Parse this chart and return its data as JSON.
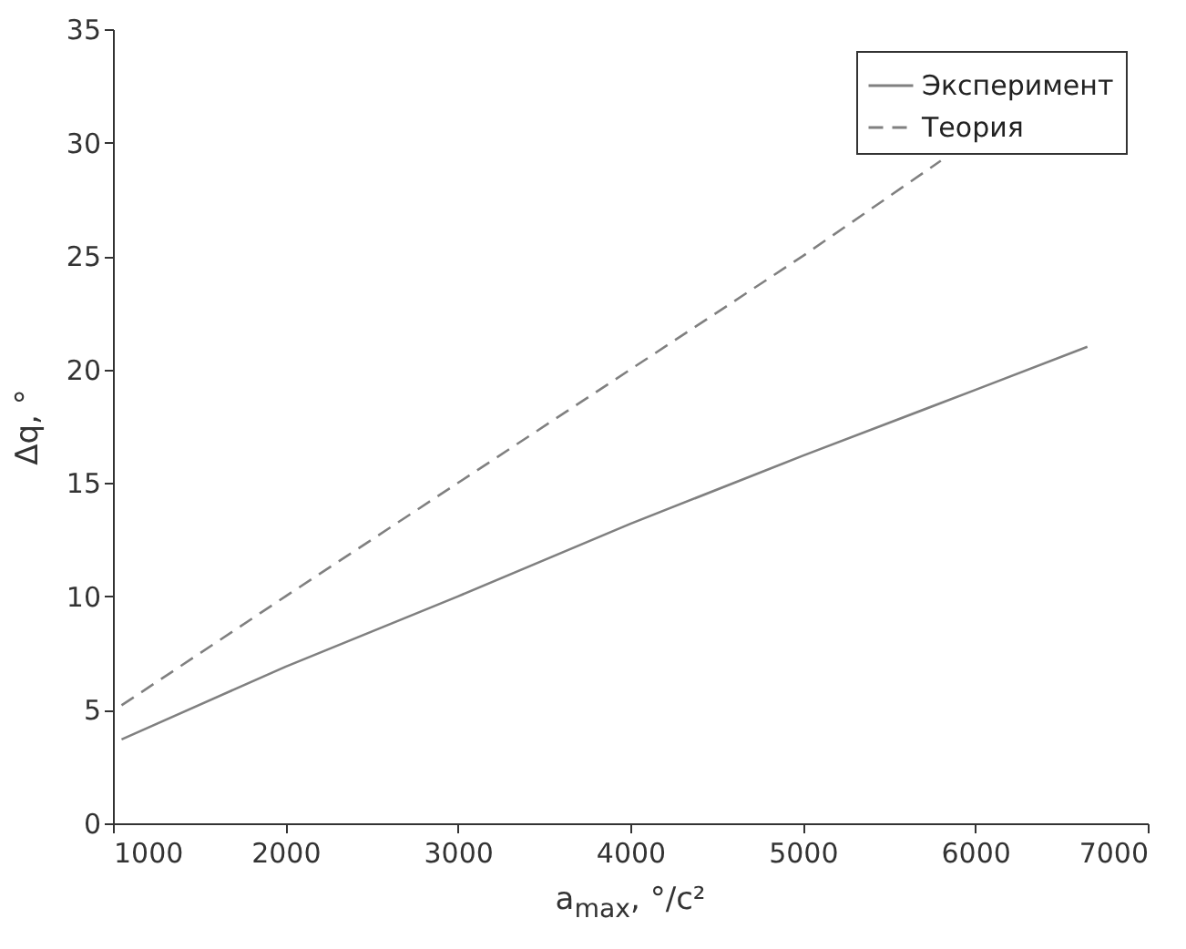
{
  "chart_data": {
    "type": "line",
    "xlabel": "a$_{max}$, °/c²",
    "ylabel": "Δq, °",
    "xlim": [
      1000,
      7000
    ],
    "xticks": [
      1000,
      2000,
      3000,
      4000,
      5000,
      6000,
      7000
    ],
    "ylim": [
      0,
      35
    ],
    "yticks": [
      0,
      5,
      10,
      15,
      20,
      25,
      30,
      35
    ],
    "grid": false,
    "legend": "top right",
    "series": [
      {
        "name": "Эксперимент",
        "color": "#808080",
        "line_style": "solid",
        "x": [
          1050,
          2000,
          3000,
          4000,
          5000,
          6000,
          6650
        ],
        "values": [
          3.7,
          6.9,
          10,
          13.2,
          16.2,
          19.1,
          21
        ]
      },
      {
        "name": "Теория",
        "color": "#808080",
        "line_style": "dashed",
        "x": [
          1050,
          2000,
          3000,
          4000,
          5000,
          5800
        ],
        "values": [
          5.2,
          10,
          15,
          20,
          25,
          29.2
        ]
      }
    ]
  }
}
